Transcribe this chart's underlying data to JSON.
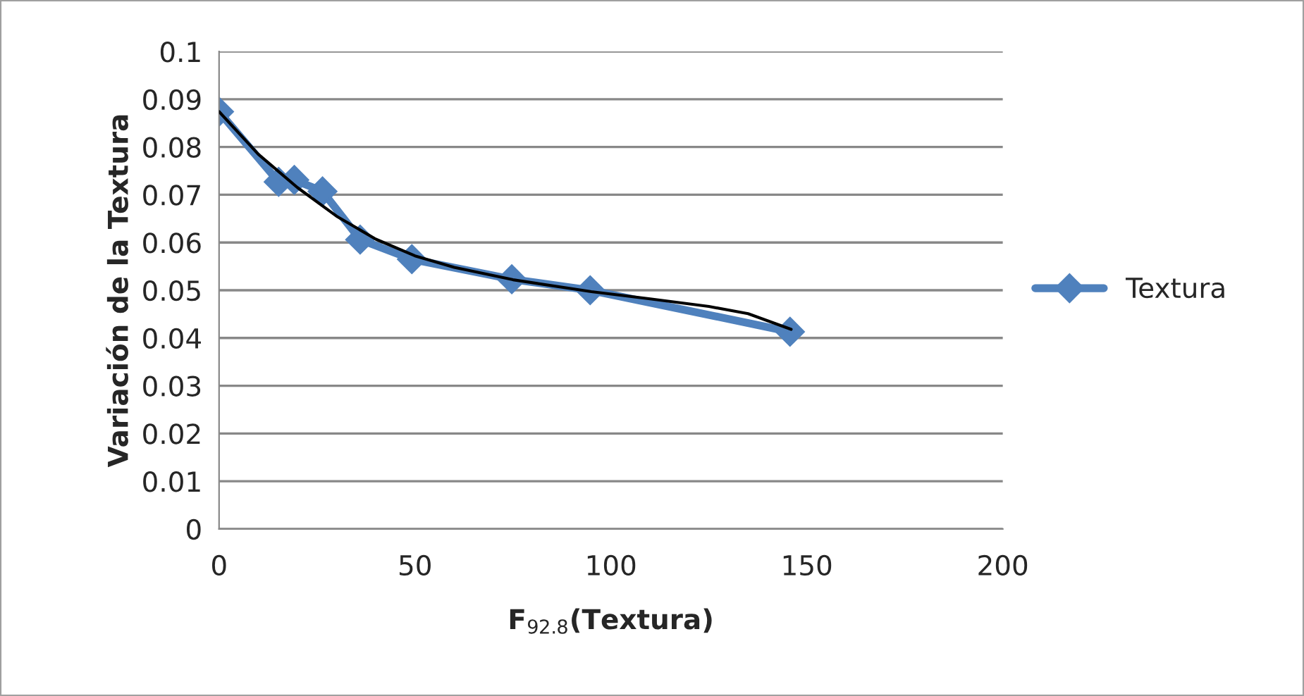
{
  "chart_data": {
    "type": "line",
    "xlabel": "F$_{92.8}$(Textura)",
    "ylabel": "Variación de la Textura",
    "xlim": [
      0,
      200
    ],
    "xticks": [
      0,
      50,
      100,
      150,
      200
    ],
    "ylim": [
      0,
      0.1
    ],
    "yticks": [
      0,
      0.01,
      0.02,
      0.03,
      0.04,
      0.05,
      0.06,
      0.07,
      0.08,
      0.09,
      0.1
    ],
    "grid": "y",
    "legend": "right",
    "series": [
      {
        "name": "Textura",
        "color": "#4f81bd",
        "marker": "diamond",
        "x": [
          0,
          15.2,
          19.2,
          26.4,
          36,
          49.2,
          74.7,
          94.7,
          145.7
        ],
        "values": [
          0.0874,
          0.0727,
          0.0731,
          0.0707,
          0.0606,
          0.0565,
          0.0523,
          0.05,
          0.0413
        ]
      },
      {
        "type": "line",
        "color": "#000000",
        "marker": "none",
        "x": [
          0,
          10,
          20,
          30,
          40,
          50,
          60,
          75,
          95,
          110,
          125,
          135,
          146
        ],
        "values": [
          0.0874,
          0.0785,
          0.0715,
          0.0655,
          0.0607,
          0.0572,
          0.0548,
          0.0522,
          0.0497,
          0.0482,
          0.0466,
          0.0451,
          0.0418
        ]
      }
    ]
  }
}
